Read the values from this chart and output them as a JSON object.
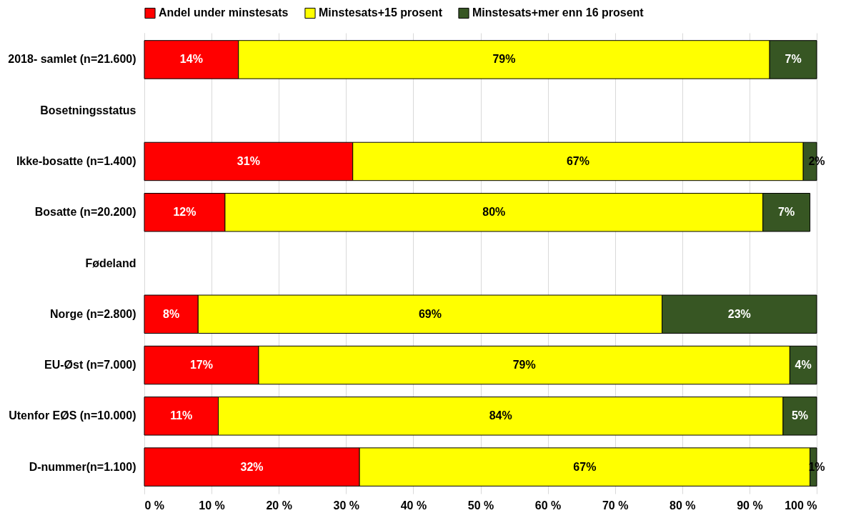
{
  "chart_data": {
    "type": "bar",
    "orientation": "horizontal",
    "stacked": true,
    "categories": [
      "2018- samlet (n=21.600)",
      "Bosetningsstatus",
      "Ikke-bosatte (n=1.400)",
      "Bosatte (n=20.200)",
      "Fødeland",
      "Norge (n=2.800)",
      "EU-Øst (n=7.000)",
      "Utenfor EØS (n=10.000)",
      "D-nummer(n=1.100)"
    ],
    "series": [
      {
        "name": "Andel under minstesats",
        "color": "#ff0000",
        "values": [
          14,
          null,
          31,
          12,
          null,
          8,
          17,
          11,
          32
        ],
        "value_labels": [
          "14%",
          null,
          "31%",
          "12%",
          null,
          "8%",
          "17%",
          "11%",
          "32%"
        ]
      },
      {
        "name": "Minstesats+15 prosent",
        "color": "#ffff00",
        "values": [
          79,
          null,
          67,
          80,
          null,
          69,
          79,
          84,
          67
        ],
        "value_labels": [
          "79%",
          null,
          "67%",
          "80%",
          null,
          "69%",
          "79%",
          "84%",
          "67%"
        ]
      },
      {
        "name": "Minstesats+mer enn 16 prosent",
        "color": "#375623",
        "values": [
          7,
          null,
          2,
          7,
          null,
          23,
          4,
          5,
          1
        ],
        "value_labels": [
          "7%",
          null,
          "2%",
          "7%",
          null,
          "23%",
          "4%",
          "5%",
          "1%"
        ]
      }
    ],
    "xlim": [
      0,
      100
    ],
    "xticks": [
      {
        "value": 0,
        "label": "0 %"
      },
      {
        "value": 10,
        "label": "10 %"
      },
      {
        "value": 20,
        "label": "20 %"
      },
      {
        "value": 30,
        "label": "30 %"
      },
      {
        "value": 40,
        "label": "40 %"
      },
      {
        "value": 50,
        "label": "50 %"
      },
      {
        "value": 60,
        "label": "60 %"
      },
      {
        "value": 70,
        "label": "70 %"
      },
      {
        "value": 80,
        "label": "80 %"
      },
      {
        "value": 90,
        "label": "90 %"
      },
      {
        "value": 100,
        "label": "100 %"
      }
    ],
    "grid": "x",
    "legend": "top"
  }
}
